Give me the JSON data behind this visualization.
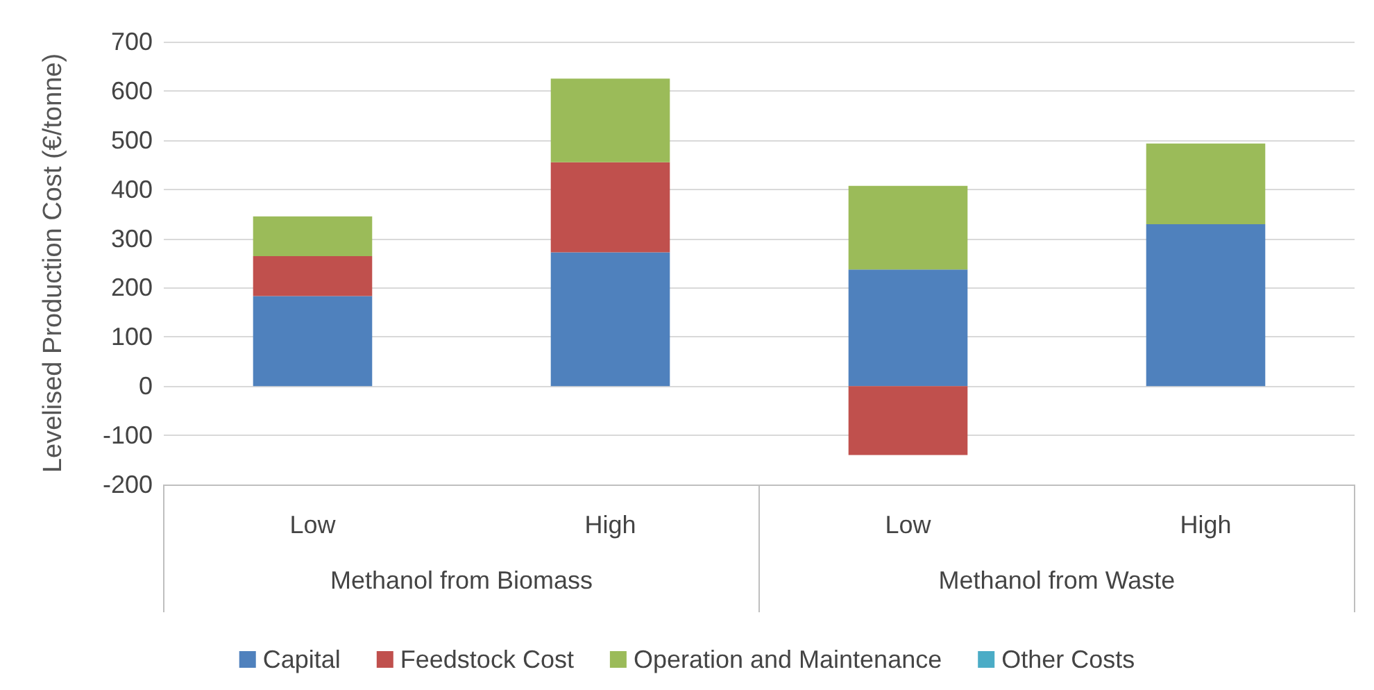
{
  "chart_data": {
    "type": "bar",
    "stacked": true,
    "ylabel": "Levelised Production Cost (€/tonne)",
    "categories": [
      "Low",
      "High",
      "Low",
      "High"
    ],
    "annotations": [
      "Methanol from Biomass",
      "Methanol from Waste"
    ],
    "series": [
      {
        "name": "Capital",
        "color": "#4f81bd",
        "values": [
          183,
          272,
          237,
          329
        ]
      },
      {
        "name": "Feedstock Cost",
        "color": "#c0504d",
        "values": [
          81,
          183,
          -140,
          null
        ]
      },
      {
        "name": "Operation and Maintenance",
        "color": "#9bbb59",
        "values": [
          81,
          170,
          170,
          164
        ]
      },
      {
        "name": "Other Costs",
        "color": "#4bacc6",
        "values": [
          null,
          null,
          null,
          null
        ]
      }
    ],
    "ylim": [
      -200,
      700
    ],
    "yticks": [
      -200,
      -100,
      0,
      100,
      200,
      300,
      400,
      500,
      600,
      700
    ],
    "grid": "y",
    "legend": "bottom"
  }
}
